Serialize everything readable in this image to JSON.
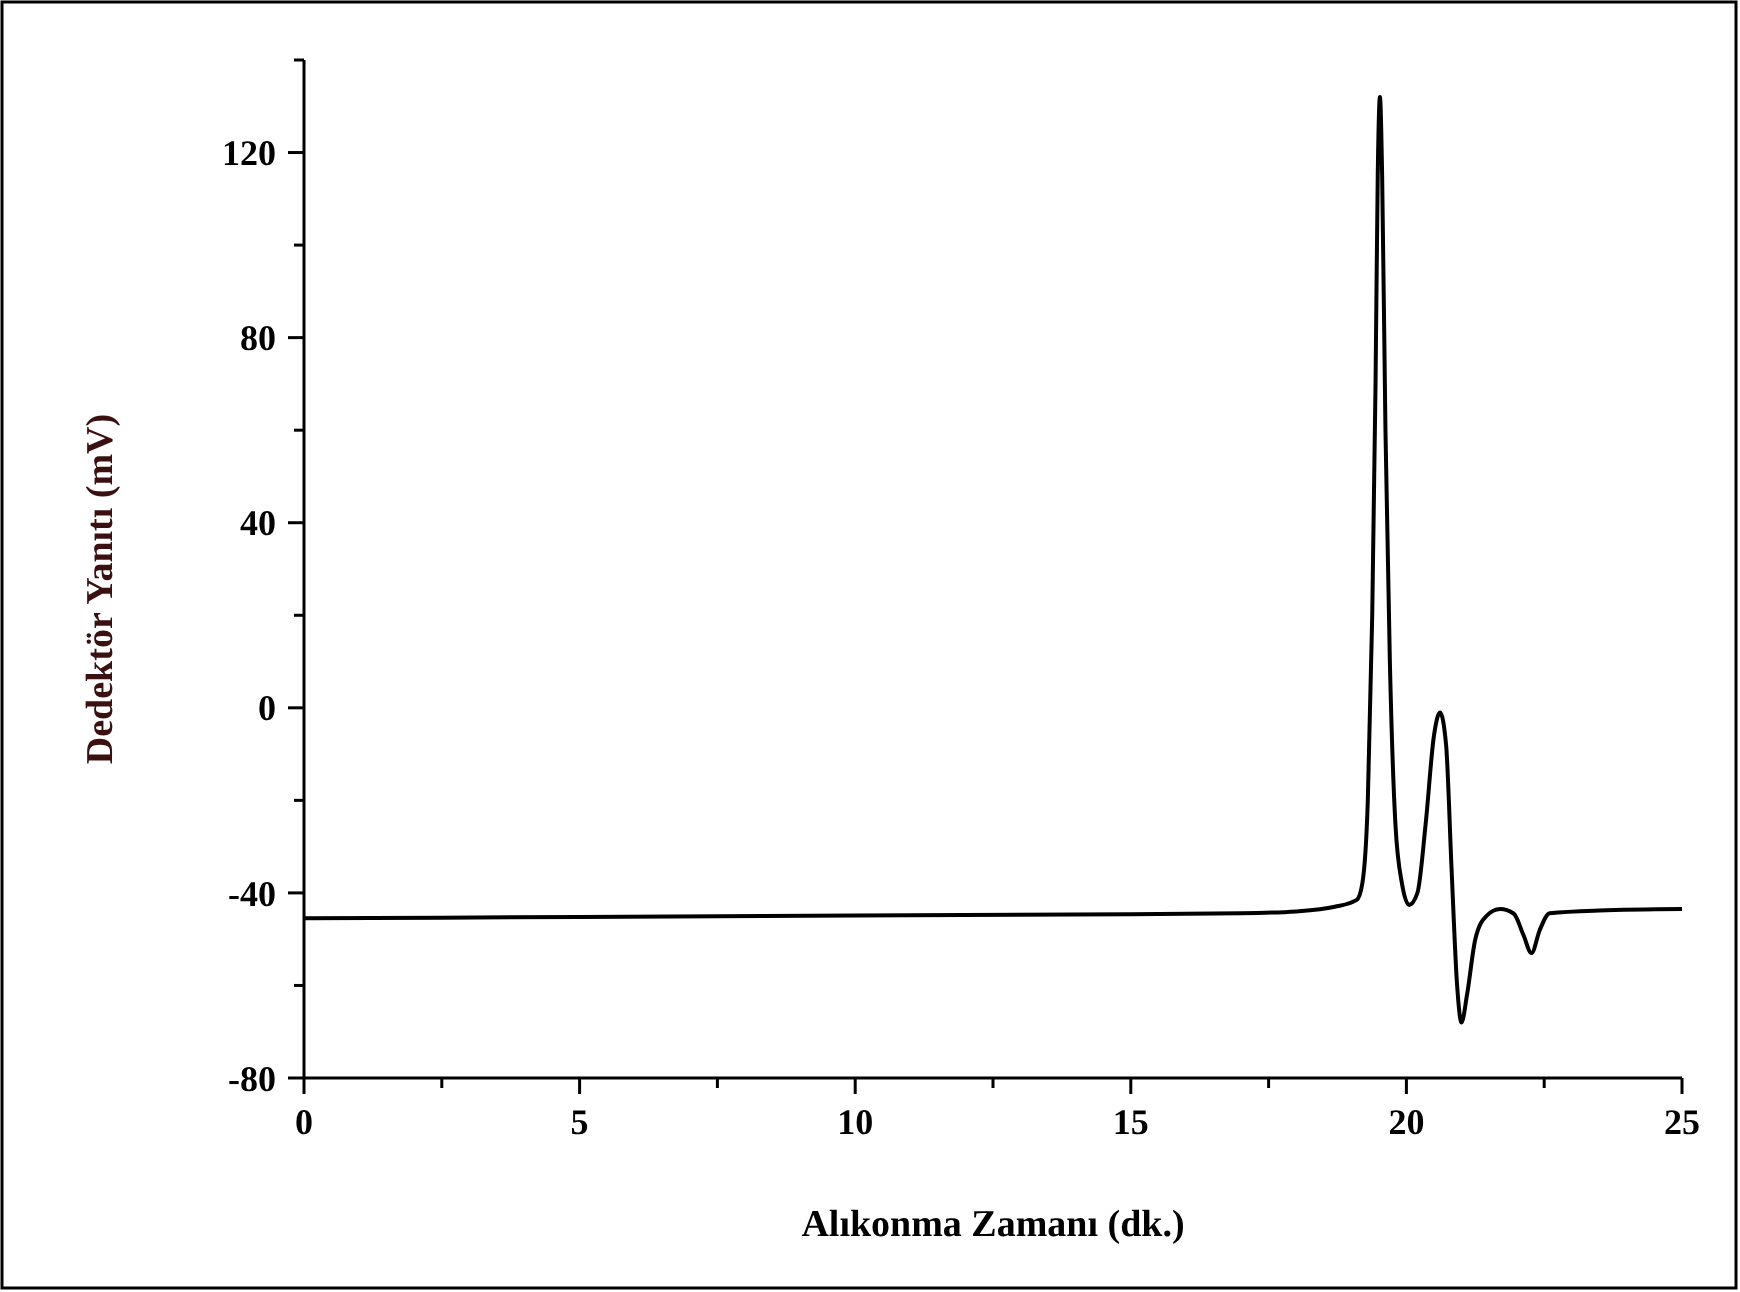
{
  "chart_data": {
    "type": "line",
    "xlabel": "Alıkonma Zamanı (dk.)",
    "ylabel": "Dedektör Yanıtı (mV)",
    "xlim": [
      0,
      25
    ],
    "ylim": [
      -80,
      140
    ],
    "xticks": [
      0,
      {
        "value": 2.5,
        "label": null
      },
      5,
      {
        "value": 7.5,
        "label": null
      },
      10,
      {
        "value": 12.5,
        "label": null
      },
      15,
      {
        "value": 17.5,
        "label": null
      },
      20,
      {
        "value": 22.5,
        "label": null
      },
      25
    ],
    "yticks": [
      -80,
      {
        "value": -60,
        "label": null
      },
      -40,
      {
        "value": -20,
        "label": null
      },
      0,
      {
        "value": 20,
        "label": null
      },
      40,
      {
        "value": 60,
        "label": null
      },
      80,
      {
        "value": 100,
        "label": null
      },
      120,
      {
        "value": 140,
        "label": null
      }
    ],
    "marker": "none",
    "line_style": "solid",
    "series": [
      {
        "color": "#000000",
        "x": [
          0,
          5,
          10,
          15,
          17,
          18,
          18.7,
          19.1,
          19.2,
          19.3,
          19.38,
          19.44,
          19.48,
          19.52,
          19.56,
          19.62,
          19.7,
          19.8,
          19.92,
          20.05,
          20.2,
          20.35,
          20.5,
          20.61,
          20.72,
          20.82,
          20.92,
          21.0,
          21.1,
          21.25,
          21.45,
          21.7,
          21.95,
          22.12,
          22.27,
          22.42,
          22.6,
          23.5,
          25
        ],
        "values": [
          -45.5,
          -45.2,
          -44.9,
          -44.6,
          -44.4,
          -44,
          -43,
          -41.5,
          -38,
          -20,
          20,
          70,
          115,
          132,
          115,
          60,
          10,
          -25,
          -38,
          -42.6,
          -40,
          -25,
          -6,
          -1,
          -8,
          -35,
          -60,
          -68,
          -62,
          -50,
          -45,
          -43.5,
          -44.5,
          -49,
          -53,
          -48,
          -44.4,
          -43.8,
          -43.5
        ]
      }
    ]
  }
}
